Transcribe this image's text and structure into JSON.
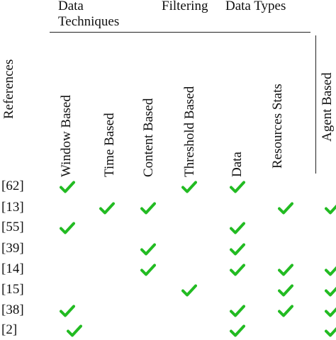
{
  "groups": {
    "data_techniques": "Data Techniques",
    "filtering": "Filtering",
    "data_types": "Data Types"
  },
  "columns": [
    "References",
    "Window  Based",
    "Time Based",
    "Content  Based",
    "Threshold Based",
    "Data",
    "Resources Stats",
    "Agent Based"
  ],
  "rows": [
    {
      "ref": "[62]",
      "checks": [
        true,
        false,
        false,
        true,
        true,
        false,
        false
      ]
    },
    {
      "ref": "[13]",
      "checks": [
        false,
        true,
        true,
        false,
        false,
        true,
        true
      ]
    },
    {
      "ref": "[55]",
      "checks": [
        true,
        false,
        false,
        false,
        true,
        false,
        false
      ]
    },
    {
      "ref": "[39]",
      "checks": [
        false,
        false,
        true,
        false,
        true,
        false,
        false
      ]
    },
    {
      "ref": "[14]",
      "checks": [
        false,
        false,
        true,
        false,
        true,
        true,
        true
      ]
    },
    {
      "ref": "[15]",
      "checks": [
        false,
        false,
        false,
        true,
        false,
        true,
        true
      ]
    },
    {
      "ref": "[38]",
      "checks": [
        true,
        false,
        false,
        false,
        true,
        true,
        true
      ]
    },
    {
      "ref": "[2]",
      "checks": [
        true,
        false,
        false,
        false,
        true,
        false,
        true
      ]
    }
  ],
  "check_icon": "check-icon",
  "check_color": "#22bb22"
}
